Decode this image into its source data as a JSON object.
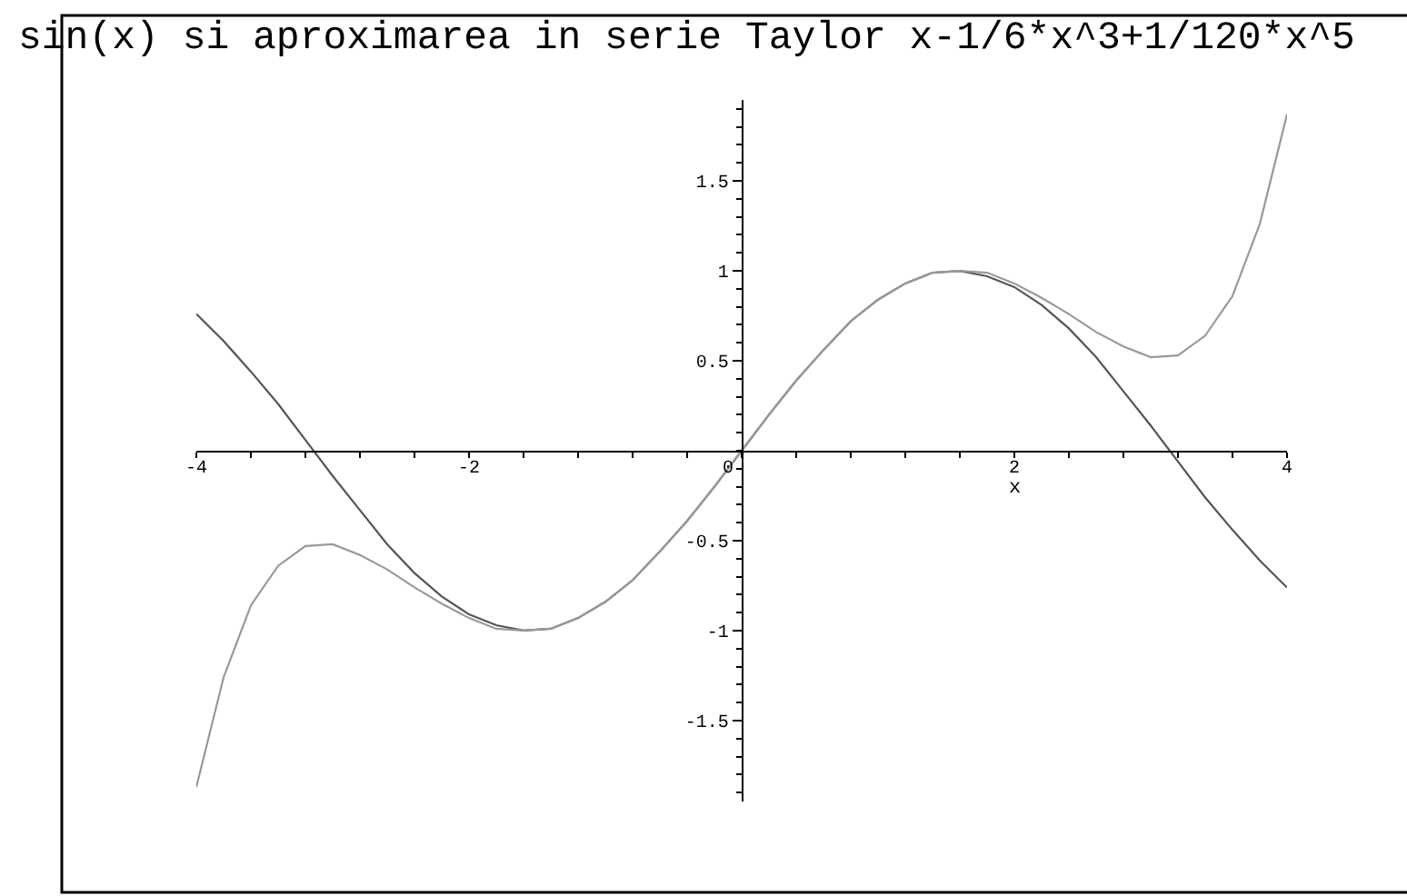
{
  "chart_data": {
    "type": "line",
    "title": "sin(x) si aproximarea in serie Taylor x-1/6*x^3+1/120*x^5",
    "xlabel": "x",
    "x": [
      -4,
      -3.8,
      -3.6,
      -3.4,
      -3.2,
      -3,
      -2.8,
      -2.6,
      -2.4,
      -2.2,
      -2,
      -1.8,
      -1.6,
      -1.4,
      -1.2,
      -1,
      -0.8,
      -0.6,
      -0.4,
      -0.2,
      0,
      0.2,
      0.4,
      0.6,
      0.8,
      1,
      1.2,
      1.4,
      1.6,
      1.8,
      2,
      2.2,
      2.4,
      2.6,
      2.8,
      3,
      3.2,
      3.4,
      3.6,
      3.8,
      4
    ],
    "series": [
      {
        "color": "#555555",
        "values": [
          0.76,
          0.61,
          0.44,
          0.26,
          0.06,
          -0.14,
          -0.33,
          -0.52,
          -0.68,
          -0.81,
          -0.91,
          -0.97,
          -1.0,
          -0.99,
          -0.93,
          -0.84,
          -0.72,
          -0.56,
          -0.39,
          -0.2,
          0,
          0.2,
          0.39,
          0.56,
          0.72,
          0.84,
          0.93,
          0.99,
          1.0,
          0.97,
          0.91,
          0.81,
          0.68,
          0.52,
          0.33,
          0.14,
          -0.06,
          -0.26,
          -0.44,
          -0.61,
          -0.76
        ]
      },
      {
        "color": "#999999",
        "values": [
          -1.87,
          -1.26,
          -0.86,
          -0.64,
          -0.53,
          -0.52,
          -0.58,
          -0.66,
          -0.76,
          -0.85,
          -0.93,
          -0.99,
          -1.0,
          -0.99,
          -0.93,
          -0.84,
          -0.72,
          -0.56,
          -0.39,
          -0.2,
          0,
          0.2,
          0.39,
          0.56,
          0.72,
          0.84,
          0.93,
          0.99,
          1.0,
          0.99,
          0.93,
          0.85,
          0.76,
          0.66,
          0.58,
          0.52,
          0.53,
          0.64,
          0.86,
          1.26,
          1.87
        ]
      }
    ],
    "xlim": [
      -4,
      4
    ],
    "ylim": [
      -1.95,
      1.95
    ],
    "xticks": [
      -4,
      {
        "value": -3.6,
        "label": null
      },
      {
        "value": -3.2,
        "label": null
      },
      {
        "value": -2.8,
        "label": null
      },
      {
        "value": -2.4,
        "label": null
      },
      -2,
      {
        "value": -1.6,
        "label": null
      },
      {
        "value": -1.2,
        "label": null
      },
      {
        "value": -0.8,
        "label": null
      },
      {
        "value": -0.4,
        "label": null
      },
      0,
      {
        "value": 0.4,
        "label": null
      },
      {
        "value": 0.8,
        "label": null
      },
      {
        "value": 1.2,
        "label": null
      },
      {
        "value": 1.6,
        "label": null
      },
      2,
      {
        "value": 2.4,
        "label": null
      },
      {
        "value": 2.8,
        "label": null
      },
      {
        "value": 3.2,
        "label": null
      },
      {
        "value": 3.6,
        "label": null
      },
      4
    ],
    "yticks": [
      {
        "value": -1.9,
        "label": null
      },
      {
        "value": -1.8,
        "label": null
      },
      {
        "value": -1.7,
        "label": null
      },
      {
        "value": -1.6,
        "label": null
      },
      -1.5,
      {
        "value": -1.4,
        "label": null
      },
      {
        "value": -1.3,
        "label": null
      },
      {
        "value": -1.2,
        "label": null
      },
      {
        "value": -1.1,
        "label": null
      },
      -1,
      {
        "value": -0.9,
        "label": null
      },
      {
        "value": -0.8,
        "label": null
      },
      {
        "value": -0.7,
        "label": null
      },
      {
        "value": -0.6,
        "label": null
      },
      -0.5,
      {
        "value": -0.4,
        "label": null
      },
      {
        "value": -0.3,
        "label": null
      },
      {
        "value": -0.2,
        "label": null
      },
      {
        "value": -0.1,
        "label": null
      },
      {
        "value": 0,
        "label": null
      },
      {
        "value": 0.1,
        "label": null
      },
      {
        "value": 0.2,
        "label": null
      },
      {
        "value": 0.3,
        "label": null
      },
      {
        "value": 0.4,
        "label": null
      },
      0.5,
      {
        "value": 0.6,
        "label": null
      },
      {
        "value": 0.7,
        "label": null
      },
      {
        "value": 0.8,
        "label": null
      },
      {
        "value": 0.9,
        "label": null
      },
      1,
      {
        "value": 1.1,
        "label": null
      },
      {
        "value": 1.2,
        "label": null
      },
      {
        "value": 1.3,
        "label": null
      },
      {
        "value": 1.4,
        "label": null
      },
      1.5,
      {
        "value": 1.6,
        "label": null
      },
      {
        "value": 1.7,
        "label": null
      },
      {
        "value": 1.8,
        "label": null
      },
      {
        "value": 1.9,
        "label": null
      }
    ]
  }
}
